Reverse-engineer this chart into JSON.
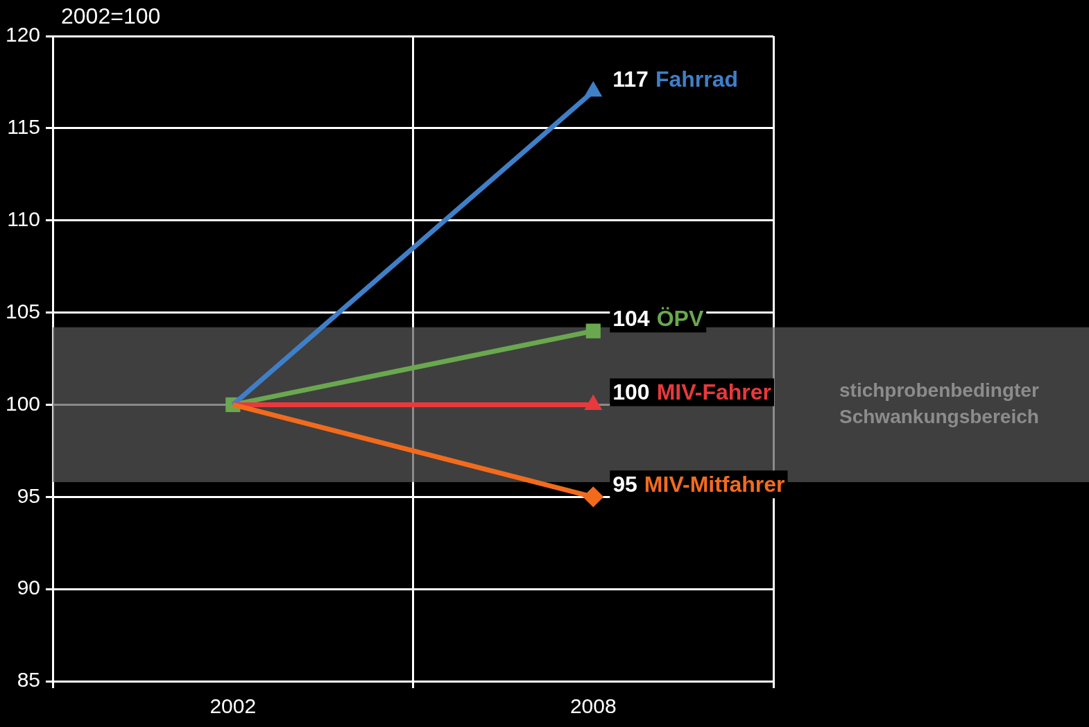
{
  "chart_data": {
    "type": "line",
    "ylabel": "2002=100",
    "categories": [
      "2002",
      "2008"
    ],
    "series": [
      {
        "name": "MIV-Mitfahrer",
        "color": "#f26b1d",
        "marker": "diamond",
        "values": [
          100,
          95
        ],
        "value_labels": [
          null,
          "95"
        ]
      },
      {
        "name": "MIV-Fahrer",
        "color": "#e8393c",
        "marker": "triangle",
        "values": [
          100,
          100
        ],
        "value_labels": [
          null,
          "100"
        ]
      },
      {
        "name": "Fahrrad",
        "color": "#3f7fc8",
        "marker": "triangle",
        "values": [
          100,
          117
        ],
        "value_labels": [
          null,
          "117"
        ]
      },
      {
        "name": "ÖPV",
        "color": "#6aa84f",
        "marker": "square",
        "values": [
          100,
          104
        ],
        "value_labels": [
          null,
          "104"
        ]
      }
    ],
    "ylim": [
      85,
      120
    ],
    "yticks": [
      85,
      90,
      95,
      100,
      105,
      110,
      115,
      120
    ],
    "grid": true,
    "legend": false,
    "bands": [
      {
        "axis": "y",
        "from": 95.8,
        "to": 104.2,
        "label": "stichprobenbedingter Schwankungsbereich",
        "color": "#5a5a5a"
      }
    ]
  }
}
